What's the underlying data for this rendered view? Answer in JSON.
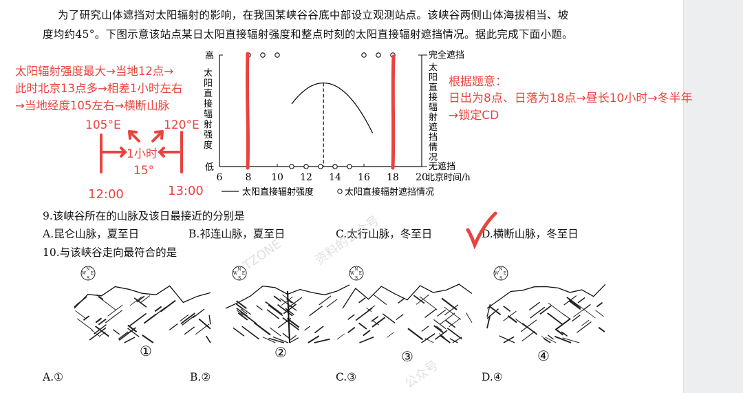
{
  "intro": {
    "line1": "为了研究山体遮挡对太阳辐射的影响，在我国某峡谷谷底中部设立观测站点。该峡谷两侧山体海拔相当、坡",
    "line2": "度均约45°。下图示意该站点某日太阳直接辐射强度和整点时刻的太阳直接辐射遮挡情况。据此完成下面小题。"
  },
  "chart_data": {
    "type": "line",
    "x_ticks": [
      "6",
      "8",
      "10",
      "12",
      "14",
      "16",
      "18",
      "20"
    ],
    "x_unit": "北京时间/h",
    "left_axis": {
      "top": "高",
      "bottom": "低",
      "label": "太阳直接辐射强度"
    },
    "right_axis": {
      "top": "完全遮挡",
      "bottom": "无遮挡",
      "label": "太阳直接辐射遮挡情况"
    },
    "xlim": [
      6,
      20
    ],
    "intensity_curve": {
      "x_start": 11,
      "x_peak": 13.2,
      "x_end": 16.6,
      "peak_level": 0.75,
      "end_level": 0.3
    },
    "peak_marker_x": 13.2,
    "blocked_points": [
      8,
      9,
      10,
      16,
      17,
      18
    ],
    "unblocked_points": [
      11,
      12,
      13,
      14,
      15
    ],
    "legend": {
      "line": "太阳直接辐射强度",
      "circle": "太阳直接辐射遮挡情况"
    }
  },
  "annotations": {
    "left_lines": [
      "太阳辐射强度最大→当地12点→",
      "此时北京13点多→相差1小时左右",
      "→当地经度105左右→横断山脉"
    ],
    "lon_105": "105°E",
    "lon_120": "120°E",
    "one_hour": "1小时",
    "deg_15": "15°",
    "time_1200": "12:00",
    "time_1300": "13:00",
    "right_lines": [
      "根据题意：",
      "日出为8点、日落为18点→昼长10小时→冬半年",
      "→锁定CD"
    ]
  },
  "q9": {
    "stem": "9.该峡谷所在的山脉及该日最接近的分别是",
    "options": [
      "A.昆仑山脉，夏至日",
      "B.祁连山脉，夏至日",
      "C.太行山脉，冬至日",
      "D.横断山脉，冬至日"
    ]
  },
  "q10": {
    "stem": "10.与该峡谷走向最符合的是",
    "labels": [
      "①",
      "②",
      "③",
      "④"
    ],
    "options": [
      "A.①",
      "B.②",
      "C.③",
      "D.④"
    ],
    "compass": [
      "N",
      "W",
      "E",
      "S"
    ]
  },
  "watermark": {
    "text1": "TZONE",
    "text2": "资料的公众号",
    "text3": "公众号"
  },
  "colors": {
    "annotation": "#e8443f",
    "text": "#111111"
  }
}
